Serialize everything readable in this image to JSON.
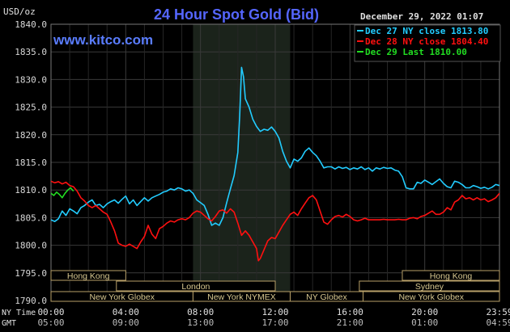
{
  "chart_data": {
    "type": "line",
    "title": "24 Hour Spot Gold (Bid)",
    "site": "www.kitco.com",
    "timestamp": "December 29, 2022 01:07",
    "ylabel": "USD/oz",
    "ylim": [
      1790,
      1840
    ],
    "y_ticks": [
      {
        "value": 1840,
        "label": "1840.0"
      },
      {
        "value": 1835,
        "label": "1835.0"
      },
      {
        "value": 1830,
        "label": "1830.0"
      },
      {
        "value": 1825,
        "label": "1825.0"
      },
      {
        "value": 1820,
        "label": "1820.0"
      },
      {
        "value": 1815,
        "label": "1815.0"
      },
      {
        "value": 1810,
        "label": "1810.0"
      },
      {
        "value": 1805,
        "label": "1805.0"
      },
      {
        "value": 1800,
        "label": "1800.0"
      },
      {
        "value": 1795,
        "label": "1795.0"
      },
      {
        "value": 1790,
        "label": "1790.0"
      }
    ],
    "xlim": [
      0,
      24
    ],
    "x_ticks": [
      {
        "value": 0,
        "ny": "00:00",
        "gmt": "05:00"
      },
      {
        "value": 4,
        "ny": "04:00",
        "gmt": "09:00"
      },
      {
        "value": 8,
        "ny": "08:00",
        "gmt": "13:00"
      },
      {
        "value": 12,
        "ny": "12:00",
        "gmt": "17:00"
      },
      {
        "value": 16,
        "ny": "16:00",
        "gmt": "21:00"
      },
      {
        "value": 20,
        "ny": "20:00",
        "gmt": "01:00"
      },
      {
        "value": 24,
        "ny": "23:59",
        "gmt": "04:59"
      }
    ],
    "x_row_labels": {
      "ny": "NY Time",
      "gmt": "GMT"
    },
    "shaded_range": [
      7.6,
      12.8
    ],
    "grid": true,
    "legend_position": "top-right",
    "series": [
      {
        "name": "Dec 27 NY close 1813.80",
        "color": "#22ccff",
        "points": [
          [
            0,
            1804.6
          ],
          [
            0.2,
            1804.3
          ],
          [
            0.4,
            1804.8
          ],
          [
            0.6,
            1806.2
          ],
          [
            0.8,
            1805.4
          ],
          [
            1.0,
            1806.6
          ],
          [
            1.2,
            1806.2
          ],
          [
            1.4,
            1805.7
          ],
          [
            1.6,
            1806.8
          ],
          [
            1.8,
            1807.2
          ],
          [
            2.0,
            1807.8
          ],
          [
            2.2,
            1808.2
          ],
          [
            2.4,
            1807.2
          ],
          [
            2.6,
            1807.4
          ],
          [
            2.8,
            1806.8
          ],
          [
            3.0,
            1807.5
          ],
          [
            3.2,
            1807.9
          ],
          [
            3.4,
            1808.2
          ],
          [
            3.6,
            1807.6
          ],
          [
            3.8,
            1808.3
          ],
          [
            4.0,
            1808.9
          ],
          [
            4.2,
            1807.5
          ],
          [
            4.4,
            1808.2
          ],
          [
            4.6,
            1807.2
          ],
          [
            4.8,
            1807.9
          ],
          [
            5.0,
            1808.6
          ],
          [
            5.2,
            1808.0
          ],
          [
            5.4,
            1808.6
          ],
          [
            5.6,
            1808.9
          ],
          [
            5.8,
            1809.2
          ],
          [
            6.0,
            1809.6
          ],
          [
            6.2,
            1809.8
          ],
          [
            6.4,
            1810.2
          ],
          [
            6.6,
            1810.0
          ],
          [
            6.8,
            1810.4
          ],
          [
            7.0,
            1810.2
          ],
          [
            7.2,
            1809.8
          ],
          [
            7.4,
            1810.0
          ],
          [
            7.6,
            1809.4
          ],
          [
            7.8,
            1808.2
          ],
          [
            8.0,
            1807.7
          ],
          [
            8.2,
            1807.2
          ],
          [
            8.4,
            1805.6
          ],
          [
            8.6,
            1803.6
          ],
          [
            8.8,
            1804.0
          ],
          [
            9.0,
            1803.6
          ],
          [
            9.2,
            1805.0
          ],
          [
            9.4,
            1807.7
          ],
          [
            9.6,
            1810.2
          ],
          [
            9.8,
            1812.6
          ],
          [
            10.0,
            1816.8
          ],
          [
            10.1,
            1823.5
          ],
          [
            10.2,
            1832.2
          ],
          [
            10.3,
            1830.5
          ],
          [
            10.4,
            1826.5
          ],
          [
            10.6,
            1825.0
          ],
          [
            10.8,
            1822.8
          ],
          [
            11.0,
            1821.5
          ],
          [
            11.2,
            1820.6
          ],
          [
            11.4,
            1821.0
          ],
          [
            11.6,
            1820.8
          ],
          [
            11.8,
            1821.4
          ],
          [
            12.0,
            1820.6
          ],
          [
            12.2,
            1819.4
          ],
          [
            12.4,
            1817.0
          ],
          [
            12.6,
            1815.2
          ],
          [
            12.8,
            1814.0
          ],
          [
            13.0,
            1815.6
          ],
          [
            13.2,
            1815.2
          ],
          [
            13.4,
            1815.8
          ],
          [
            13.6,
            1817.0
          ],
          [
            13.8,
            1817.6
          ],
          [
            14.0,
            1816.8
          ],
          [
            14.2,
            1816.2
          ],
          [
            14.4,
            1815.2
          ],
          [
            14.6,
            1814.0
          ],
          [
            14.8,
            1814.2
          ],
          [
            15.0,
            1814.2
          ],
          [
            15.2,
            1813.8
          ],
          [
            15.4,
            1814.2
          ],
          [
            15.6,
            1813.9
          ],
          [
            15.8,
            1814.1
          ],
          [
            16.0,
            1813.7
          ],
          [
            16.2,
            1814.0
          ],
          [
            16.4,
            1813.8
          ],
          [
            16.6,
            1814.2
          ],
          [
            16.8,
            1813.7
          ],
          [
            17.0,
            1814.0
          ],
          [
            17.2,
            1813.4
          ],
          [
            17.4,
            1814.0
          ],
          [
            17.6,
            1813.8
          ],
          [
            17.8,
            1814.1
          ],
          [
            18.0,
            1813.9
          ],
          [
            18.2,
            1814.0
          ],
          [
            18.4,
            1813.6
          ],
          [
            18.6,
            1813.4
          ],
          [
            18.8,
            1812.4
          ],
          [
            19.0,
            1810.4
          ],
          [
            19.2,
            1810.2
          ],
          [
            19.4,
            1810.2
          ],
          [
            19.6,
            1811.4
          ],
          [
            19.8,
            1811.2
          ],
          [
            20.0,
            1811.8
          ],
          [
            20.2,
            1811.4
          ],
          [
            20.4,
            1811.0
          ],
          [
            20.6,
            1811.5
          ],
          [
            20.8,
            1812.0
          ],
          [
            21.0,
            1811.2
          ],
          [
            21.2,
            1810.6
          ],
          [
            21.4,
            1810.4
          ],
          [
            21.6,
            1811.6
          ],
          [
            21.8,
            1811.4
          ],
          [
            22.0,
            1811.0
          ],
          [
            22.2,
            1810.4
          ],
          [
            22.4,
            1810.4
          ],
          [
            22.6,
            1810.8
          ],
          [
            22.8,
            1810.6
          ],
          [
            23.0,
            1810.3
          ],
          [
            23.2,
            1810.5
          ],
          [
            23.4,
            1810.2
          ],
          [
            23.6,
            1810.5
          ],
          [
            23.8,
            1811.0
          ],
          [
            24.0,
            1810.8
          ]
        ]
      },
      {
        "name": "Dec 28 NY close 1804.40",
        "color": "#ff1010",
        "points": [
          [
            0,
            1811.6
          ],
          [
            0.2,
            1811.3
          ],
          [
            0.4,
            1811.5
          ],
          [
            0.6,
            1811.1
          ],
          [
            0.8,
            1811.4
          ],
          [
            1.0,
            1810.8
          ],
          [
            1.2,
            1810.6
          ],
          [
            1.4,
            1809.8
          ],
          [
            1.6,
            1808.6
          ],
          [
            1.8,
            1808.0
          ],
          [
            2.0,
            1807.2
          ],
          [
            2.2,
            1806.8
          ],
          [
            2.4,
            1807.2
          ],
          [
            2.6,
            1806.6
          ],
          [
            2.8,
            1806.0
          ],
          [
            3.0,
            1805.6
          ],
          [
            3.2,
            1804.2
          ],
          [
            3.4,
            1802.6
          ],
          [
            3.6,
            1800.4
          ],
          [
            3.8,
            1800.0
          ],
          [
            4.0,
            1799.8
          ],
          [
            4.2,
            1800.2
          ],
          [
            4.4,
            1799.8
          ],
          [
            4.6,
            1799.4
          ],
          [
            4.8,
            1800.6
          ],
          [
            5.0,
            1801.6
          ],
          [
            5.2,
            1803.6
          ],
          [
            5.4,
            1802.0
          ],
          [
            5.6,
            1801.2
          ],
          [
            5.8,
            1803.0
          ],
          [
            6.0,
            1803.4
          ],
          [
            6.2,
            1804.0
          ],
          [
            6.4,
            1804.4
          ],
          [
            6.6,
            1804.2
          ],
          [
            6.8,
            1804.6
          ],
          [
            7.0,
            1804.8
          ],
          [
            7.2,
            1804.6
          ],
          [
            7.4,
            1805.0
          ],
          [
            7.6,
            1805.8
          ],
          [
            7.8,
            1806.2
          ],
          [
            8.0,
            1806.0
          ],
          [
            8.2,
            1805.4
          ],
          [
            8.4,
            1804.8
          ],
          [
            8.6,
            1804.4
          ],
          [
            8.8,
            1805.2
          ],
          [
            9.0,
            1806.2
          ],
          [
            9.2,
            1806.4
          ],
          [
            9.4,
            1805.8
          ],
          [
            9.6,
            1806.6
          ],
          [
            9.8,
            1806.0
          ],
          [
            10.0,
            1804.0
          ],
          [
            10.2,
            1801.8
          ],
          [
            10.4,
            1802.6
          ],
          [
            10.6,
            1801.8
          ],
          [
            10.8,
            1800.6
          ],
          [
            11.0,
            1799.4
          ],
          [
            11.1,
            1797.2
          ],
          [
            11.2,
            1797.6
          ],
          [
            11.4,
            1799.2
          ],
          [
            11.6,
            1800.8
          ],
          [
            11.8,
            1801.4
          ],
          [
            12.0,
            1801.2
          ],
          [
            12.2,
            1802.4
          ],
          [
            12.4,
            1803.6
          ],
          [
            12.6,
            1804.6
          ],
          [
            12.8,
            1805.6
          ],
          [
            13.0,
            1806.0
          ],
          [
            13.2,
            1805.4
          ],
          [
            13.4,
            1806.6
          ],
          [
            13.6,
            1807.6
          ],
          [
            13.8,
            1808.6
          ],
          [
            14.0,
            1809.0
          ],
          [
            14.2,
            1808.2
          ],
          [
            14.4,
            1806.2
          ],
          [
            14.6,
            1804.2
          ],
          [
            14.8,
            1803.8
          ],
          [
            15.0,
            1804.6
          ],
          [
            15.2,
            1805.2
          ],
          [
            15.4,
            1805.4
          ],
          [
            15.6,
            1805.1
          ],
          [
            15.8,
            1805.6
          ],
          [
            16.0,
            1805.2
          ],
          [
            16.2,
            1804.6
          ],
          [
            16.4,
            1804.4
          ],
          [
            16.6,
            1804.6
          ],
          [
            16.8,
            1804.9
          ],
          [
            17.0,
            1804.6
          ],
          [
            17.2,
            1804.6
          ],
          [
            17.4,
            1804.6
          ],
          [
            17.6,
            1804.6
          ],
          [
            17.8,
            1804.7
          ],
          [
            18.0,
            1804.6
          ],
          [
            18.2,
            1804.6
          ],
          [
            18.4,
            1804.6
          ],
          [
            18.6,
            1804.7
          ],
          [
            18.8,
            1804.6
          ],
          [
            19.0,
            1804.6
          ],
          [
            19.2,
            1804.9
          ],
          [
            19.4,
            1805.0
          ],
          [
            19.6,
            1804.8
          ],
          [
            19.8,
            1805.2
          ],
          [
            20.0,
            1805.4
          ],
          [
            20.2,
            1805.8
          ],
          [
            20.4,
            1806.2
          ],
          [
            20.6,
            1805.6
          ],
          [
            20.8,
            1805.6
          ],
          [
            21.0,
            1806.0
          ],
          [
            21.2,
            1806.8
          ],
          [
            21.4,
            1806.4
          ],
          [
            21.6,
            1807.8
          ],
          [
            21.8,
            1808.2
          ],
          [
            22.0,
            1809.0
          ],
          [
            22.2,
            1808.4
          ],
          [
            22.4,
            1808.6
          ],
          [
            22.6,
            1808.2
          ],
          [
            22.8,
            1808.6
          ],
          [
            23.0,
            1808.2
          ],
          [
            23.2,
            1808.4
          ],
          [
            23.4,
            1807.9
          ],
          [
            23.6,
            1808.2
          ],
          [
            23.8,
            1808.6
          ],
          [
            24.0,
            1809.4
          ]
        ]
      },
      {
        "name": "Dec 29 Last 1810.00",
        "color": "#22dd22",
        "points": [
          [
            0,
            1809.4
          ],
          [
            0.15,
            1809.0
          ],
          [
            0.3,
            1809.6
          ],
          [
            0.45,
            1809.2
          ],
          [
            0.6,
            1808.6
          ],
          [
            0.75,
            1809.4
          ],
          [
            0.9,
            1810.0
          ],
          [
            1.05,
            1810.4
          ],
          [
            1.2,
            1809.8
          ]
        ]
      }
    ],
    "market_sessions": [
      {
        "label": "Hong Kong",
        "start": 0,
        "end": 4.0,
        "row": 0
      },
      {
        "label": "Hong Kong",
        "start": 18.8,
        "end": 24.0,
        "row": 0
      },
      {
        "label": "London",
        "start": 3.5,
        "end": 12.0,
        "row": 1
      },
      {
        "label": "Sydney",
        "start": 16.5,
        "end": 24.0,
        "row": 1
      },
      {
        "label": "New York Globex",
        "start": 0,
        "end": 7.6,
        "row": 2
      },
      {
        "label": "New York NYMEX",
        "start": 7.6,
        "end": 12.8,
        "row": 2
      },
      {
        "label": "NY Globex",
        "start": 12.8,
        "end": 16.7,
        "row": 2
      },
      {
        "label": "New York Globex",
        "start": 16.7,
        "end": 24.0,
        "row": 2
      }
    ]
  }
}
